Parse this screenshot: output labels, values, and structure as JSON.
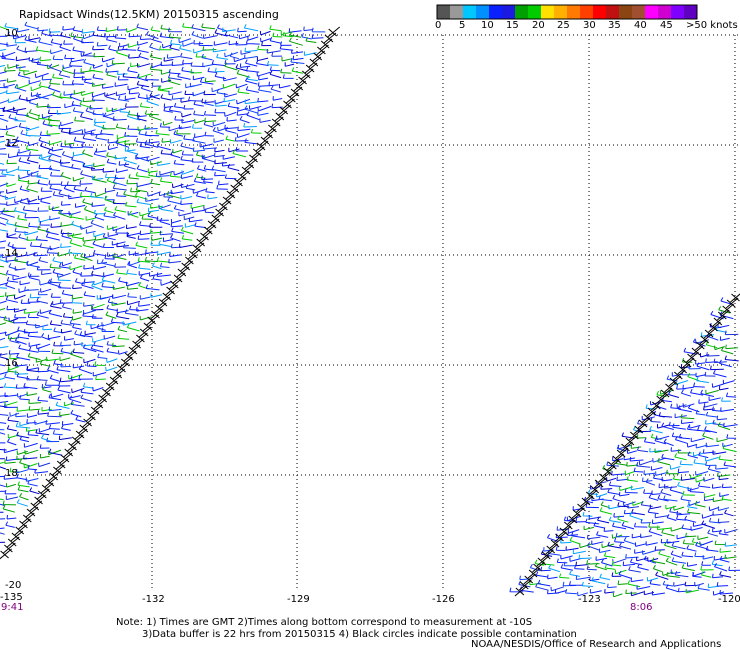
{
  "title": "Rapidsact Winds(12.5KM) 20150315 ascending",
  "colorbar": {
    "colors": [
      "#555555",
      "#999999",
      "#00c8ff",
      "#0090ff",
      "#0a20ff",
      "#1a1ae0",
      "#00a000",
      "#00cc00",
      "#ffe000",
      "#ffb000",
      "#ff7a00",
      "#ff4000",
      "#ff0000",
      "#c01010",
      "#8b4513",
      "#a05030",
      "#ff00ff",
      "#d000d0",
      "#8000ff",
      "#6000c0"
    ],
    "labels": [
      "0",
      "5",
      "10",
      "15",
      "20",
      "25",
      "30",
      "35",
      "40",
      "45",
      ">50 knots"
    ]
  },
  "lon_ticks": [
    "-135",
    "-132",
    "-129",
    "-126",
    "-123",
    "-120"
  ],
  "lat_ticks": [
    "10",
    "12",
    "14",
    "16",
    "18",
    "-20"
  ],
  "time_left": "9:41",
  "time_right": "8:06",
  "notes": [
    "Note: 1) Times are GMT 2)Times along bottom correspond to measurement at -10S",
    "3)Data buffer is 22 hrs from 20150315 4) Black circles indicate possible contamination",
    "NOAA/NESDIS/Office of Research and Applications"
  ]
}
